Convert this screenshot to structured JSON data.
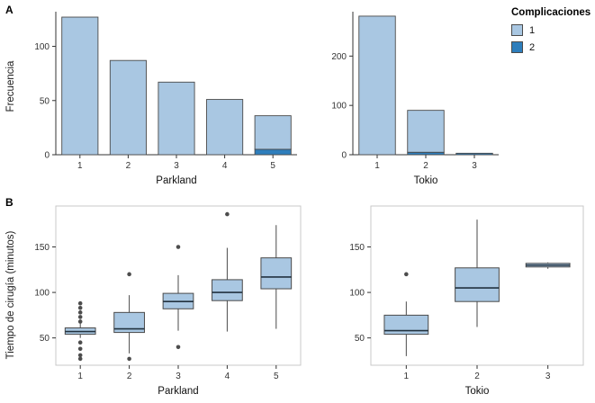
{
  "figure": {
    "panel_a_label": "A",
    "panel_b_label": "B",
    "y_label_a": "Frecuencia",
    "y_label_b": "Tiempo de cirugía (minutos)"
  },
  "legend": {
    "title": "Complicaciones",
    "items": [
      {
        "label": "1",
        "color": "#a9c7e2"
      },
      {
        "label": "2",
        "color": "#2e7ebc"
      }
    ]
  },
  "colors": {
    "fill_light": "#a9c7e2",
    "fill_dark": "#2e7ebc",
    "stroke": "#4a4a4a",
    "axis": "#333333",
    "panel_border": "#c9c9c9",
    "outlier": "#4d4d4d",
    "median": "#22323f"
  },
  "chart_data": [
    {
      "id": "bar-parkland",
      "type": "bar",
      "stacked": true,
      "categories": [
        "1",
        "2",
        "3",
        "4",
        "5"
      ],
      "series": [
        {
          "name": "2",
          "color": "#2e7ebc",
          "values": [
            0,
            0,
            0,
            0,
            5
          ]
        },
        {
          "name": "1",
          "color": "#a9c7e2",
          "values": [
            127,
            87,
            67,
            51,
            31
          ]
        }
      ],
      "xlabel": "Parkland",
      "ylabel": "Frecuencia",
      "yticks": [
        0,
        50,
        100
      ],
      "ylim": [
        0,
        132
      ],
      "grid": false,
      "legend_position": "top-right-of-figure"
    },
    {
      "id": "bar-tokio",
      "type": "bar",
      "stacked": true,
      "categories": [
        "1",
        "2",
        "3"
      ],
      "series": [
        {
          "name": "2",
          "color": "#2e7ebc",
          "values": [
            0,
            5,
            3
          ]
        },
        {
          "name": "1",
          "color": "#a9c7e2",
          "values": [
            281,
            85,
            0
          ]
        }
      ],
      "xlabel": "Tokio",
      "ylabel": "Frecuencia",
      "yticks": [
        0,
        100,
        200
      ],
      "ylim": [
        0,
        290
      ],
      "grid": false
    },
    {
      "id": "box-parkland",
      "type": "boxplot",
      "categories": [
        "1",
        "2",
        "3",
        "4",
        "5"
      ],
      "boxes": [
        {
          "whisker_low": 50,
          "q1": 54,
          "median": 57,
          "q3": 61,
          "whisker_high": 66,
          "outliers": [
            88,
            83,
            78,
            73,
            68,
            45,
            38,
            31,
            27
          ]
        },
        {
          "whisker_low": 33,
          "q1": 56,
          "median": 60,
          "q3": 78,
          "whisker_high": 97,
          "outliers": [
            120,
            27
          ]
        },
        {
          "whisker_low": 58,
          "q1": 82,
          "median": 90,
          "q3": 99,
          "whisker_high": 119,
          "outliers": [
            150,
            40
          ]
        },
        {
          "whisker_low": 57,
          "q1": 91,
          "median": 100,
          "q3": 114,
          "whisker_high": 149,
          "outliers": [
            186
          ]
        },
        {
          "whisker_low": 60,
          "q1": 104,
          "median": 117,
          "q3": 138,
          "whisker_high": 174,
          "outliers": []
        }
      ],
      "xlabel": "Parkland",
      "ylabel": "Tiempo de cirugía (minutos)",
      "yticks": [
        50,
        100,
        150
      ],
      "ylim": [
        20,
        195
      ],
      "grid": false
    },
    {
      "id": "box-tokio",
      "type": "boxplot",
      "categories": [
        "1",
        "2",
        "3"
      ],
      "boxes": [
        {
          "whisker_low": 30,
          "q1": 54,
          "median": 58,
          "q3": 75,
          "whisker_high": 90,
          "outliers": [
            120
          ]
        },
        {
          "whisker_low": 62,
          "q1": 90,
          "median": 105,
          "q3": 127,
          "whisker_high": 180,
          "outliers": []
        },
        {
          "whisker_low": 126,
          "q1": 128,
          "median": 130,
          "q3": 132,
          "whisker_high": 133,
          "outliers": []
        }
      ],
      "xlabel": "Tokio",
      "ylabel": "Tiempo de cirugía (minutos)",
      "yticks": [
        50,
        100,
        150
      ],
      "ylim": [
        20,
        195
      ],
      "grid": false
    }
  ]
}
